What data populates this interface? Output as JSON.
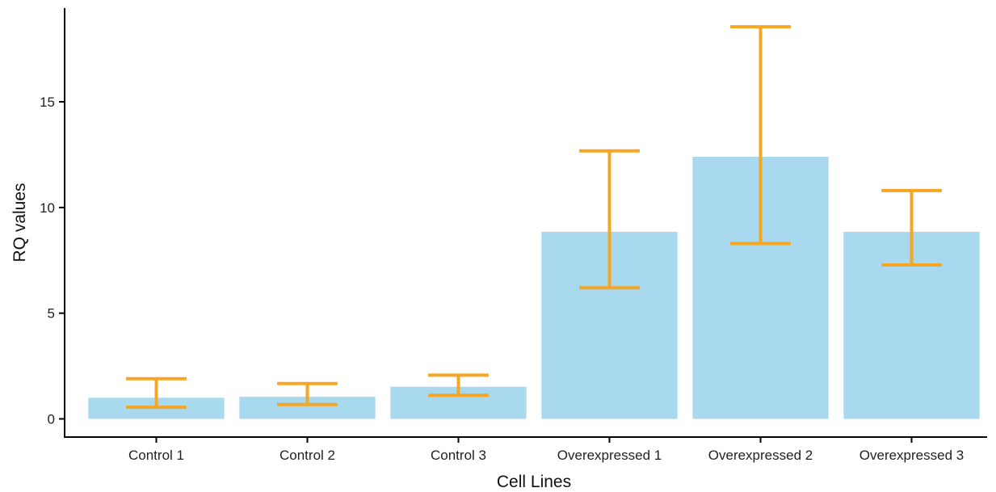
{
  "chart_data": {
    "type": "bar",
    "title": "",
    "xlabel": "Cell Lines",
    "ylabel": "RQ values",
    "categories": [
      "Control 1",
      "Control 2",
      "Control 3",
      "Overexpressed 1",
      "Overexpressed 2",
      "Overexpressed 3"
    ],
    "values": [
      1.0,
      1.05,
      1.52,
      8.85,
      12.4,
      8.85
    ],
    "error_bars": {
      "lower": [
        0.55,
        0.68,
        1.12,
        6.2,
        8.3,
        7.28
      ],
      "upper": [
        1.9,
        1.67,
        2.07,
        12.68,
        18.55,
        10.8
      ]
    },
    "ylim": [
      -0.9,
      19.5
    ],
    "yticks": [
      0,
      5,
      10,
      15
    ],
    "grid": false,
    "legend": "none",
    "colors": {
      "bar": "#a9d9ee",
      "error_bar": "#f5a623",
      "axis": "#000000"
    }
  }
}
